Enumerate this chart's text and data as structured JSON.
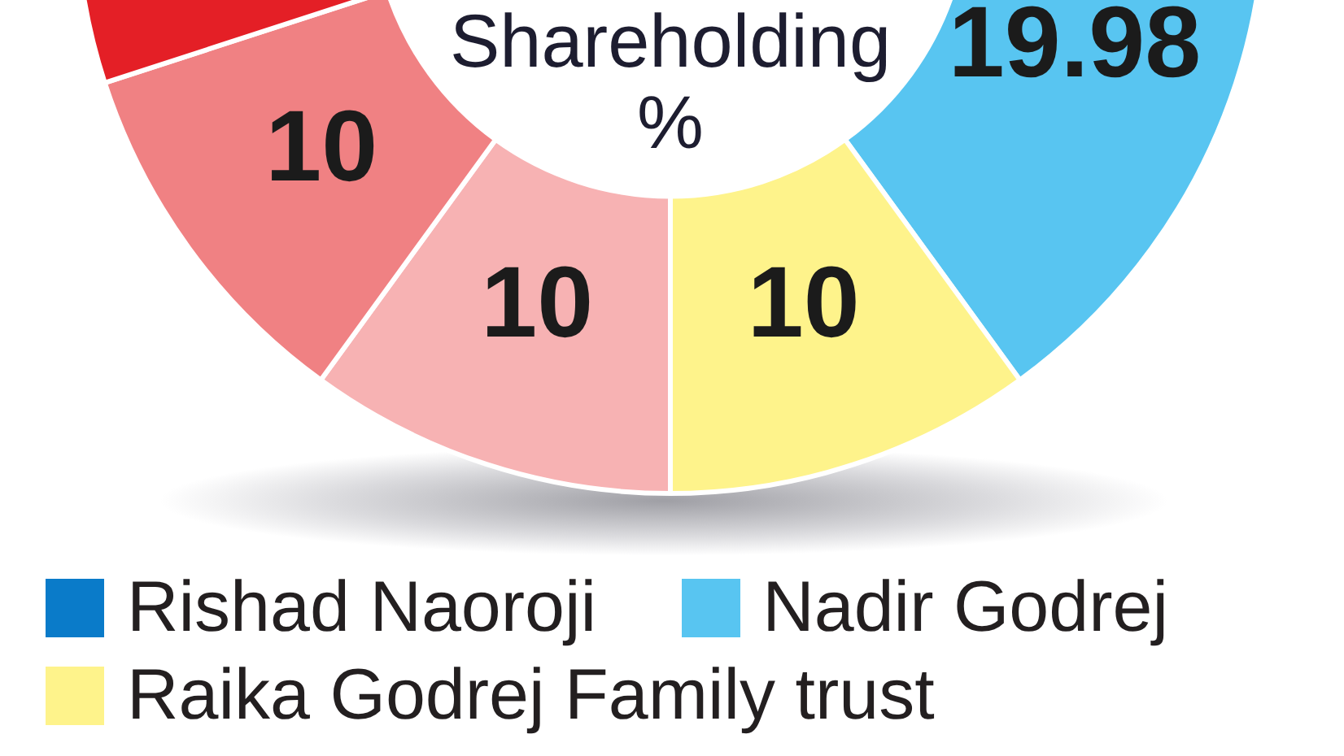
{
  "chart_data": {
    "type": "donut",
    "title": "Shareholding %",
    "categories": [
      "Rishad Naoroji",
      "Nadir Godrej",
      "Raika Godrej Family trust",
      null,
      null,
      null
    ],
    "values": [
      null,
      19.98,
      10,
      10,
      10,
      30
    ],
    "colors": [
      "#0a7bc9",
      "#58c5f1",
      "#fef38b",
      "#f7b2b3",
      "#f08183",
      "#e41f26"
    ],
    "value_labels": [
      null,
      "19.98",
      "10",
      "10",
      "10",
      null
    ],
    "legend": "bottom"
  }
}
